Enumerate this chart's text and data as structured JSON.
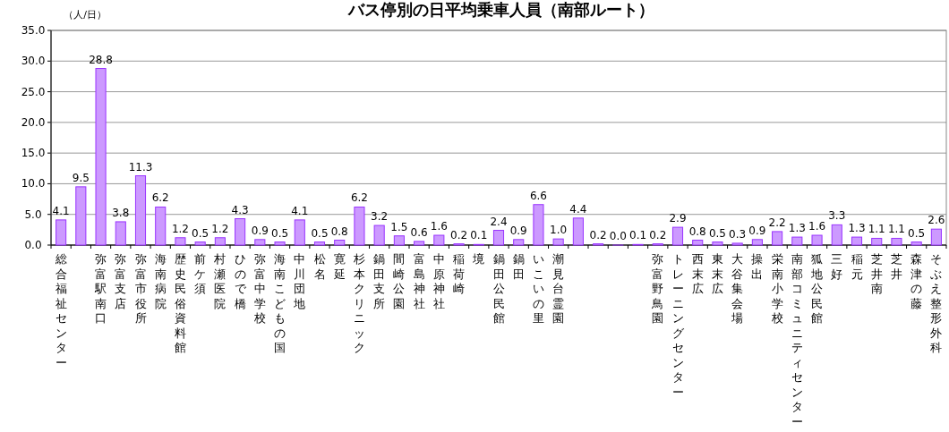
{
  "chart_data": {
    "type": "bar",
    "title": "バス停別の日平均乗車人員（南部ルート）",
    "ylabel": "（人/日）",
    "categories": [
      "総合福祉センター",
      null,
      "弥富駅南口",
      "弥富支店",
      "弥富市役所",
      "海南病院",
      "歴史民俗資料館",
      "前ケ須",
      "村瀬医院",
      "ひので橋",
      "弥富中学校",
      "海南こどもの国",
      "中川団地",
      "松名",
      "寛延",
      "杉本クリニック",
      "鍋田支所",
      "間崎公園",
      "富島神社",
      "中原神社",
      "稲荷崎",
      "境",
      "鍋田公民館",
      "鍋田",
      "いこいの里",
      "潮見台霊園",
      null,
      null,
      null,
      null,
      "弥富野鳥園",
      "トレーニングセンター",
      "西末広",
      "東末広",
      "大谷集会場",
      "操出",
      "栄南小学校",
      "南部コミュニティセンター",
      "狐地公民館",
      "三好",
      "稲元",
      "芝井南",
      "芝井",
      "森津の藤",
      "そぶえ整形外科"
    ],
    "values": [
      4.1,
      9.5,
      28.8,
      3.8,
      11.3,
      6.2,
      1.2,
      0.5,
      1.2,
      4.3,
      0.9,
      0.5,
      4.1,
      0.5,
      0.8,
      6.2,
      3.2,
      1.5,
      0.6,
      1.6,
      0.2,
      0.1,
      2.4,
      0.9,
      6.6,
      1.0,
      4.4,
      0.2,
      0.0,
      0.1,
      0.2,
      2.9,
      0.8,
      0.5,
      0.3,
      0.9,
      2.2,
      1.3,
      1.6,
      3.3,
      1.3,
      1.1,
      1.1,
      0.5,
      2.6
    ],
    "value_labels": [
      "4.1",
      "9.5",
      "28.8",
      "3.8",
      "11.3",
      "6.2",
      "1.2",
      "0.5",
      "1.2",
      "4.3",
      "0.9",
      "0.5",
      "4.1",
      "0.5",
      "0.8",
      "6.2",
      "3.2",
      "1.5",
      "0.6",
      "1.6",
      "0.2",
      "0.1",
      "2.4",
      "0.9",
      "6.6",
      "1.0",
      "4.4",
      "0.2",
      "0.0",
      "0.1",
      "0.2",
      "2.9",
      "0.8",
      "0.5",
      "0.3",
      "0.9",
      "2.2",
      "1.3",
      "1.6",
      "3.3",
      "1.3",
      "1.1",
      "1.1",
      "0.5",
      "2.6"
    ],
    "color": "#cc99ff",
    "ylim": [
      0,
      35
    ],
    "yticks": [
      {
        "value": 0,
        "label": "0.0"
      },
      {
        "value": 5,
        "label": "5.0"
      },
      {
        "value": 10,
        "label": "10.0"
      },
      {
        "value": 15,
        "label": "15.0"
      },
      {
        "value": 20,
        "label": "20.0"
      },
      {
        "value": 25,
        "label": "25.0"
      },
      {
        "value": 30,
        "label": "30.0"
      },
      {
        "value": 35,
        "label": "35.0"
      }
    ],
    "grid": "y"
  }
}
